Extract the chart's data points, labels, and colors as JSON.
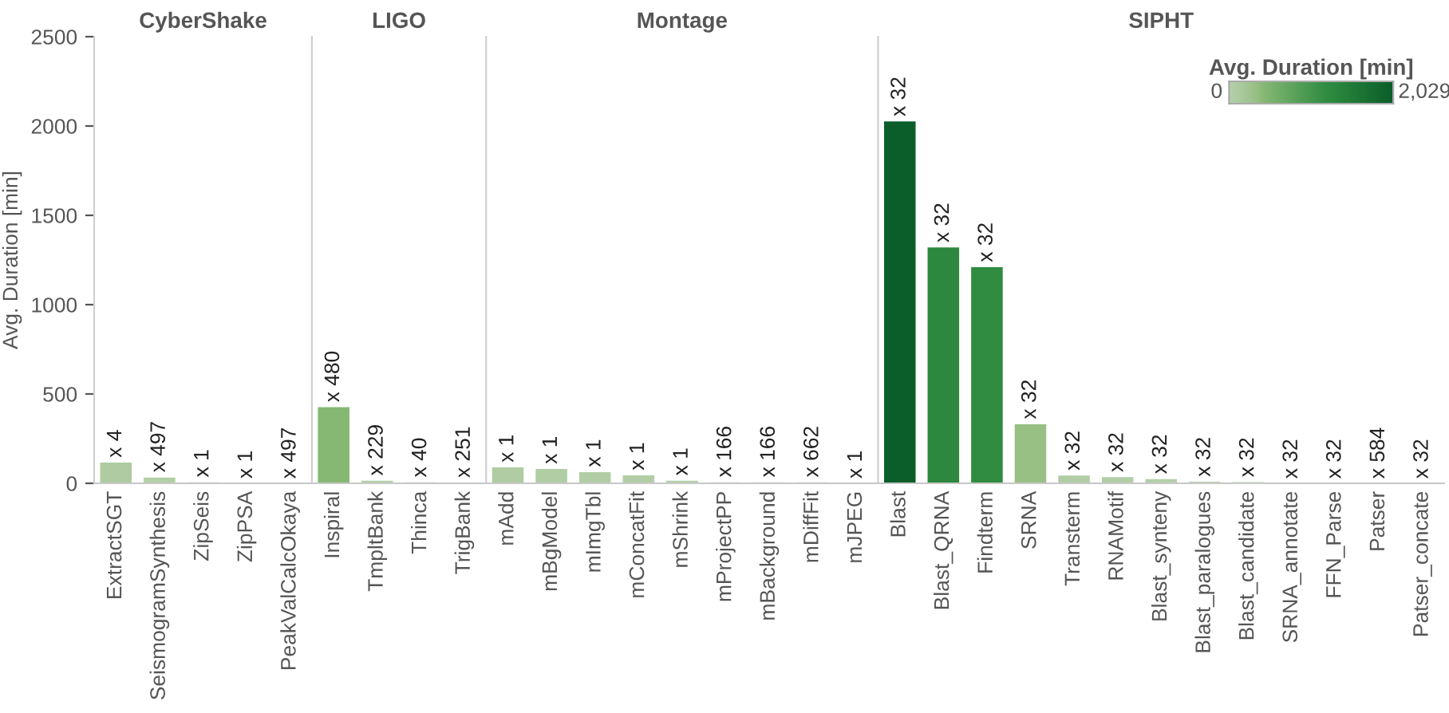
{
  "chart_data": [
    {
      "type": "bar",
      "title": "CyberShake",
      "ylabel": "Avg. Duration [min]",
      "ylim": [
        0,
        2500
      ],
      "yticks": [
        0,
        500,
        1000,
        1500,
        2000,
        2500
      ],
      "grid": false,
      "categories": [
        "ExtractSGT",
        "SeismogramSynthesis",
        "ZipSeis",
        "ZipPSA",
        "PeakValCalcOkaya"
      ],
      "values": [
        119,
        36,
        9,
        2,
        1
      ],
      "colors": [
        "#aecba1",
        "#b3cfa6",
        "#b4d0a8",
        "#b4d0a8",
        "#b4d0a8"
      ],
      "value_labels": [
        "x 4",
        "x 497",
        "x 1",
        "x 1",
        "x 497"
      ]
    },
    {
      "type": "bar",
      "title": "LIGO",
      "ylim": [
        0,
        2500
      ],
      "tick_labels": "x",
      "grid": false,
      "categories": [
        "Inspiral",
        "TmpltBank",
        "Thinca",
        "TrigBank"
      ],
      "values": [
        429,
        18,
        9,
        6
      ],
      "colors": [
        "#86b874",
        "#b3cfa7",
        "#b4d0a8",
        "#b4d0a8"
      ],
      "value_labels": [
        "x 480",
        "x 229",
        "x 40",
        "x 251"
      ]
    },
    {
      "type": "bar",
      "title": "Montage",
      "ylim": [
        0,
        2500
      ],
      "tick_labels": "x",
      "grid": false,
      "categories": [
        "mAdd",
        "mBgModel",
        "mImgTbl",
        "mConcatFit",
        "mShrink",
        "mProjectPP",
        "mBackground",
        "mDiffFit",
        "mJPEG"
      ],
      "values": [
        92,
        83,
        66,
        48,
        18,
        9,
        9,
        9,
        2
      ],
      "colors": [
        "#b0cca3",
        "#b0cda4",
        "#b1cda5",
        "#b2cea6",
        "#b3cfa7",
        "#b4d0a8",
        "#b4d0a8",
        "#b4d0a8",
        "#b4d0a8"
      ],
      "value_labels": [
        "x 1",
        "x 1",
        "x 1",
        "x 1",
        "x 1",
        "x 166",
        "x 166",
        "x 662",
        "x 1"
      ]
    },
    {
      "type": "bar",
      "title": "SIPHT",
      "ylim": [
        0,
        2500
      ],
      "tick_labels": "x",
      "grid": false,
      "categories": [
        "Blast",
        "Blast_QRNA",
        "Findterm",
        "SRNA",
        "Transterm",
        "RNAMotif",
        "Blast_synteny",
        "Blast_paralogues",
        "Blast_candidate",
        "SRNA_annotate",
        "FFN_Parse",
        "Patser",
        "Patser_concate"
      ],
      "values": [
        2029,
        1323,
        1213,
        334,
        47,
        38,
        27,
        12,
        10,
        1,
        1,
        1,
        1
      ],
      "colors": [
        "#0b5e2a",
        "#2b883e",
        "#2f8c41",
        "#98c084",
        "#b1cda5",
        "#b2cea6",
        "#b3cfa7",
        "#b4d0a8",
        "#b4d0a8",
        "#b4d0a8",
        "#b4d0a8",
        "#b4d0a8",
        "#b4d0a8"
      ],
      "value_labels": [
        "x 32",
        "x 32",
        "x 32",
        "x 32",
        "x 32",
        "x 32",
        "x 32",
        "x 32",
        "x 32",
        "x 32",
        "x 32",
        "x 584",
        "x 32"
      ],
      "clabel": "Avg. Duration [min]",
      "annotations": [
        "0",
        "2,029"
      ]
    }
  ]
}
